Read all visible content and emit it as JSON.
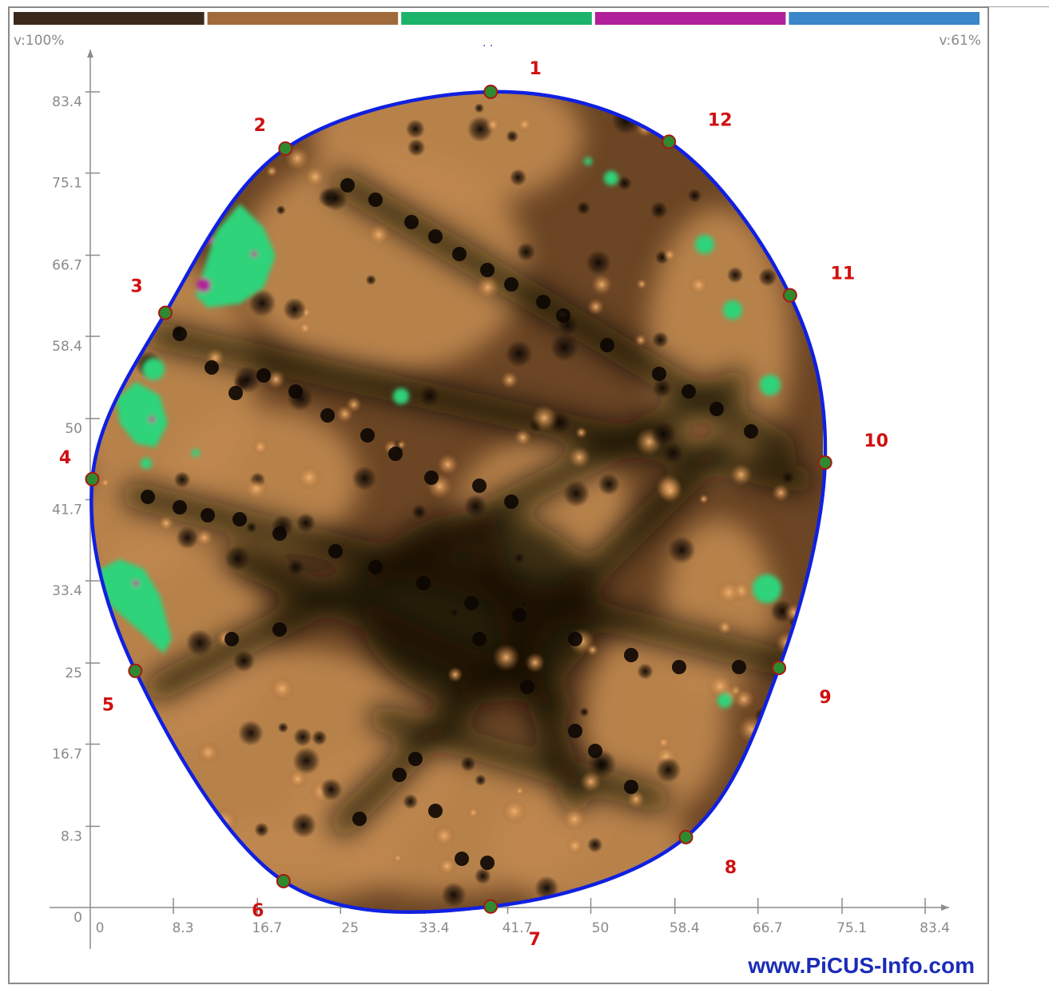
{
  "header": {
    "velocity_left": "v:100%",
    "velocity_right": "v:61%",
    "scale_colors": [
      "#3b2a1c",
      "#a06a3a",
      "#1db36a",
      "#b0209a",
      "#3a86c8"
    ]
  },
  "watermark": "www.PiCUS-Info.com",
  "chart_data": {
    "type": "heatmap",
    "title": "",
    "xlabel": "",
    "ylabel": "",
    "xlim": [
      0,
      83.4
    ],
    "ylim": [
      0,
      83.4
    ],
    "x_ticks": [
      "0",
      "8.3",
      "16.7",
      "25",
      "33.4",
      "41.7",
      "50",
      "58.4",
      "66.7",
      "75.1",
      "83.4"
    ],
    "y_ticks": [
      "0",
      "8.3",
      "16.7",
      "25",
      "33.4",
      "41.7",
      "50",
      "58.4",
      "66.7",
      "75.1",
      "83.4"
    ],
    "grid": false,
    "colors": {
      "outline": "#1020e0",
      "sensor_fill": "#2f8a2f",
      "sensor_label": "#d01010",
      "solid": "#c08850",
      "damage": "#140c06",
      "healthy_green": "#2ed37a",
      "cavity": "#b0209a"
    },
    "sensors": [
      {
        "label": "1",
        "x": 40.0,
        "y": 83.4
      },
      {
        "label": "2",
        "x": 19.5,
        "y": 77.6
      },
      {
        "label": "3",
        "x": 7.5,
        "y": 60.8
      },
      {
        "label": "4",
        "x": 0.2,
        "y": 43.8
      },
      {
        "label": "5",
        "x": 4.5,
        "y": 24.2
      },
      {
        "label": "6",
        "x": 19.3,
        "y": 2.7
      },
      {
        "label": "7",
        "x": 40.0,
        "y": 0.1
      },
      {
        "label": "8",
        "x": 59.5,
        "y": 7.2
      },
      {
        "label": "9",
        "x": 68.8,
        "y": 24.5
      },
      {
        "label": "10",
        "x": 73.4,
        "y": 45.5
      },
      {
        "label": "11",
        "x": 69.9,
        "y": 62.6
      },
      {
        "label": "12",
        "x": 57.8,
        "y": 78.3
      }
    ]
  }
}
